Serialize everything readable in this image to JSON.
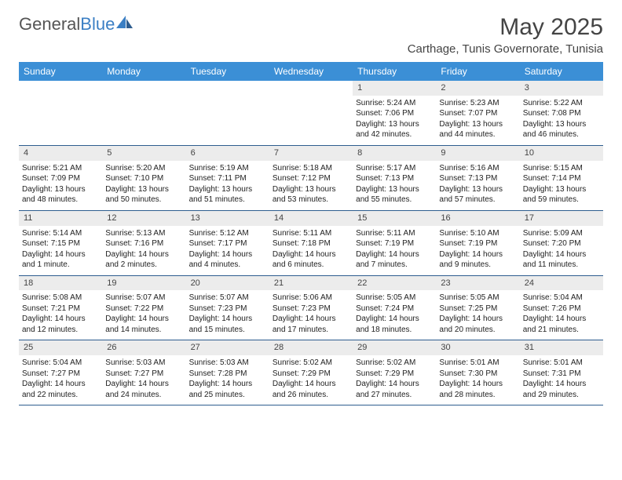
{
  "brand": {
    "name_gray": "General",
    "name_blue": "Blue"
  },
  "title": "May 2025",
  "location": "Carthage, Tunis Governorate, Tunisia",
  "colors": {
    "header_bg": "#3b8fd6",
    "header_text": "#ffffff",
    "daynum_bg": "#ececec",
    "week_border": "#2e5d8f",
    "text": "#222222",
    "logo_blue": "#3b7fc4",
    "logo_gray": "#555555"
  },
  "day_labels": [
    "Sunday",
    "Monday",
    "Tuesday",
    "Wednesday",
    "Thursday",
    "Friday",
    "Saturday"
  ],
  "weeks": [
    [
      {
        "empty": true
      },
      {
        "empty": true
      },
      {
        "empty": true
      },
      {
        "empty": true
      },
      {
        "day": "1",
        "sunrise": "Sunrise: 5:24 AM",
        "sunset": "Sunset: 7:06 PM",
        "daylight": "Daylight: 13 hours and 42 minutes."
      },
      {
        "day": "2",
        "sunrise": "Sunrise: 5:23 AM",
        "sunset": "Sunset: 7:07 PM",
        "daylight": "Daylight: 13 hours and 44 minutes."
      },
      {
        "day": "3",
        "sunrise": "Sunrise: 5:22 AM",
        "sunset": "Sunset: 7:08 PM",
        "daylight": "Daylight: 13 hours and 46 minutes."
      }
    ],
    [
      {
        "day": "4",
        "sunrise": "Sunrise: 5:21 AM",
        "sunset": "Sunset: 7:09 PM",
        "daylight": "Daylight: 13 hours and 48 minutes."
      },
      {
        "day": "5",
        "sunrise": "Sunrise: 5:20 AM",
        "sunset": "Sunset: 7:10 PM",
        "daylight": "Daylight: 13 hours and 50 minutes."
      },
      {
        "day": "6",
        "sunrise": "Sunrise: 5:19 AM",
        "sunset": "Sunset: 7:11 PM",
        "daylight": "Daylight: 13 hours and 51 minutes."
      },
      {
        "day": "7",
        "sunrise": "Sunrise: 5:18 AM",
        "sunset": "Sunset: 7:12 PM",
        "daylight": "Daylight: 13 hours and 53 minutes."
      },
      {
        "day": "8",
        "sunrise": "Sunrise: 5:17 AM",
        "sunset": "Sunset: 7:13 PM",
        "daylight": "Daylight: 13 hours and 55 minutes."
      },
      {
        "day": "9",
        "sunrise": "Sunrise: 5:16 AM",
        "sunset": "Sunset: 7:13 PM",
        "daylight": "Daylight: 13 hours and 57 minutes."
      },
      {
        "day": "10",
        "sunrise": "Sunrise: 5:15 AM",
        "sunset": "Sunset: 7:14 PM",
        "daylight": "Daylight: 13 hours and 59 minutes."
      }
    ],
    [
      {
        "day": "11",
        "sunrise": "Sunrise: 5:14 AM",
        "sunset": "Sunset: 7:15 PM",
        "daylight": "Daylight: 14 hours and 1 minute."
      },
      {
        "day": "12",
        "sunrise": "Sunrise: 5:13 AM",
        "sunset": "Sunset: 7:16 PM",
        "daylight": "Daylight: 14 hours and 2 minutes."
      },
      {
        "day": "13",
        "sunrise": "Sunrise: 5:12 AM",
        "sunset": "Sunset: 7:17 PM",
        "daylight": "Daylight: 14 hours and 4 minutes."
      },
      {
        "day": "14",
        "sunrise": "Sunrise: 5:11 AM",
        "sunset": "Sunset: 7:18 PM",
        "daylight": "Daylight: 14 hours and 6 minutes."
      },
      {
        "day": "15",
        "sunrise": "Sunrise: 5:11 AM",
        "sunset": "Sunset: 7:19 PM",
        "daylight": "Daylight: 14 hours and 7 minutes."
      },
      {
        "day": "16",
        "sunrise": "Sunrise: 5:10 AM",
        "sunset": "Sunset: 7:19 PM",
        "daylight": "Daylight: 14 hours and 9 minutes."
      },
      {
        "day": "17",
        "sunrise": "Sunrise: 5:09 AM",
        "sunset": "Sunset: 7:20 PM",
        "daylight": "Daylight: 14 hours and 11 minutes."
      }
    ],
    [
      {
        "day": "18",
        "sunrise": "Sunrise: 5:08 AM",
        "sunset": "Sunset: 7:21 PM",
        "daylight": "Daylight: 14 hours and 12 minutes."
      },
      {
        "day": "19",
        "sunrise": "Sunrise: 5:07 AM",
        "sunset": "Sunset: 7:22 PM",
        "daylight": "Daylight: 14 hours and 14 minutes."
      },
      {
        "day": "20",
        "sunrise": "Sunrise: 5:07 AM",
        "sunset": "Sunset: 7:23 PM",
        "daylight": "Daylight: 14 hours and 15 minutes."
      },
      {
        "day": "21",
        "sunrise": "Sunrise: 5:06 AM",
        "sunset": "Sunset: 7:23 PM",
        "daylight": "Daylight: 14 hours and 17 minutes."
      },
      {
        "day": "22",
        "sunrise": "Sunrise: 5:05 AM",
        "sunset": "Sunset: 7:24 PM",
        "daylight": "Daylight: 14 hours and 18 minutes."
      },
      {
        "day": "23",
        "sunrise": "Sunrise: 5:05 AM",
        "sunset": "Sunset: 7:25 PM",
        "daylight": "Daylight: 14 hours and 20 minutes."
      },
      {
        "day": "24",
        "sunrise": "Sunrise: 5:04 AM",
        "sunset": "Sunset: 7:26 PM",
        "daylight": "Daylight: 14 hours and 21 minutes."
      }
    ],
    [
      {
        "day": "25",
        "sunrise": "Sunrise: 5:04 AM",
        "sunset": "Sunset: 7:27 PM",
        "daylight": "Daylight: 14 hours and 22 minutes."
      },
      {
        "day": "26",
        "sunrise": "Sunrise: 5:03 AM",
        "sunset": "Sunset: 7:27 PM",
        "daylight": "Daylight: 14 hours and 24 minutes."
      },
      {
        "day": "27",
        "sunrise": "Sunrise: 5:03 AM",
        "sunset": "Sunset: 7:28 PM",
        "daylight": "Daylight: 14 hours and 25 minutes."
      },
      {
        "day": "28",
        "sunrise": "Sunrise: 5:02 AM",
        "sunset": "Sunset: 7:29 PM",
        "daylight": "Daylight: 14 hours and 26 minutes."
      },
      {
        "day": "29",
        "sunrise": "Sunrise: 5:02 AM",
        "sunset": "Sunset: 7:29 PM",
        "daylight": "Daylight: 14 hours and 27 minutes."
      },
      {
        "day": "30",
        "sunrise": "Sunrise: 5:01 AM",
        "sunset": "Sunset: 7:30 PM",
        "daylight": "Daylight: 14 hours and 28 minutes."
      },
      {
        "day": "31",
        "sunrise": "Sunrise: 5:01 AM",
        "sunset": "Sunset: 7:31 PM",
        "daylight": "Daylight: 14 hours and 29 minutes."
      }
    ]
  ]
}
